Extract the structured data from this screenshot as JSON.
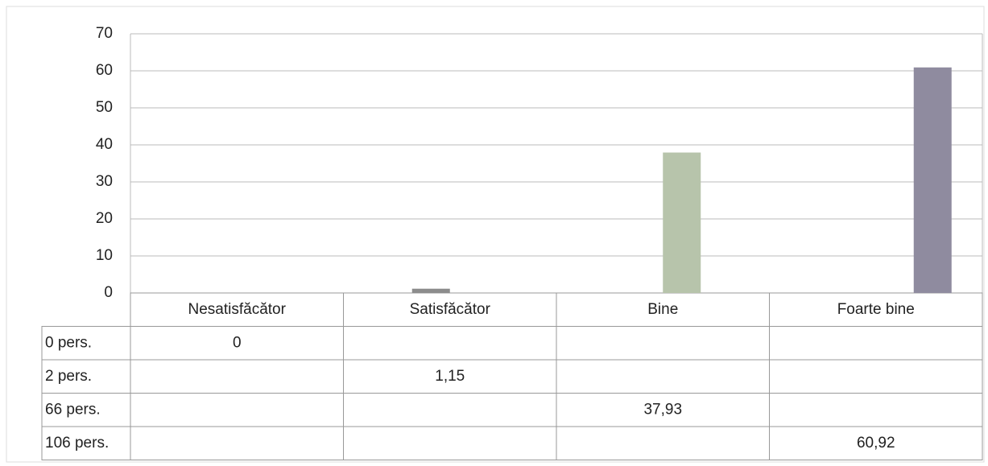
{
  "chart_data": {
    "type": "bar",
    "categories": [
      "Nesatisfăcător",
      "Satisfăcător",
      "Bine",
      "Foarte bine"
    ],
    "series": [
      {
        "name": "0 pers.",
        "color": "#7a86a8",
        "values": [
          0,
          null,
          null,
          null
        ]
      },
      {
        "name": "2 pers.",
        "color": "#8c8c8c",
        "values": [
          null,
          1.15,
          null,
          null
        ],
        "value_labels": [
          null,
          "1,15",
          null,
          null
        ]
      },
      {
        "name": "66 pers.",
        "color": "#b7c4ab",
        "values": [
          null,
          null,
          37.93,
          null
        ],
        "value_labels": [
          null,
          null,
          "37,93",
          null
        ]
      },
      {
        "name": "106 pers.",
        "color": "#8f8b9f",
        "values": [
          null,
          null,
          null,
          60.92
        ],
        "value_labels": [
          null,
          null,
          null,
          "60,92"
        ]
      }
    ],
    "ylim": [
      0,
      70
    ],
    "yticks": [
      0,
      10,
      20,
      30,
      40,
      50,
      60,
      70
    ],
    "grid": true
  }
}
